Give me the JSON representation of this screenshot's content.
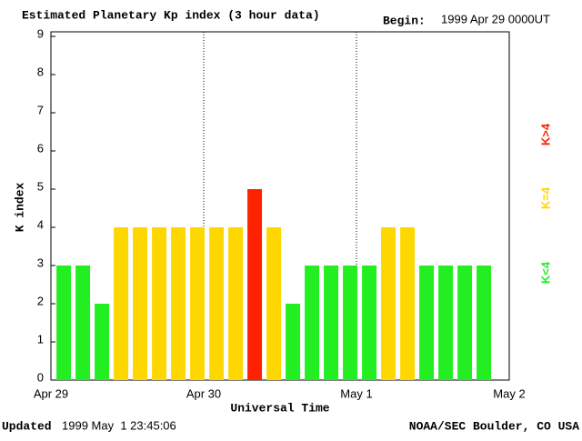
{
  "chart_data": {
    "type": "bar",
    "title": "Estimated Planetary Kp index (3 hour data)",
    "begin_label": "Begin:",
    "begin": "1999 Apr 29 0000UT",
    "updated_label": "Updated",
    "updated": "1999 May  1 23:45:06",
    "credit": "NOAA/SEC Boulder, CO USA",
    "x_label": "Universal Time",
    "y_label": "K index",
    "x": [
      0,
      3,
      6,
      9,
      12,
      15,
      18,
      21,
      24,
      27,
      30,
      33,
      36,
      39,
      42,
      45,
      48,
      51,
      54,
      57,
      60,
      63,
      66
    ],
    "values": [
      3,
      3,
      2,
      4,
      4,
      4,
      4,
      4,
      4,
      4,
      5,
      4,
      2,
      3,
      3,
      3,
      3,
      4,
      4,
      3,
      3,
      3,
      3
    ],
    "colors": [
      "#22ee22",
      "#22ee22",
      "#22ee22",
      "#ffd700",
      "#ffd700",
      "#ffd700",
      "#ffd700",
      "#ffd700",
      "#ffd700",
      "#ffd700",
      "#ff2200",
      "#ffd700",
      "#22ee22",
      "#22ee22",
      "#22ee22",
      "#22ee22",
      "#22ee22",
      "#ffd700",
      "#ffd700",
      "#22ee22",
      "#22ee22",
      "#22ee22",
      "#22ee22"
    ],
    "legend": [
      {
        "name": "K<4",
        "color": "#22ee22"
      },
      {
        "name": "K=4",
        "color": "#ffd700"
      },
      {
        "name": "K>4",
        "color": "#ff2200"
      }
    ],
    "xlim": [
      0,
      72
    ],
    "xticks": [
      {
        "value": 0,
        "label": "Apr 29"
      },
      {
        "value": 24,
        "label": "Apr 30"
      },
      {
        "value": 48,
        "label": "May 1"
      },
      {
        "value": 72,
        "label": "May 2"
      }
    ],
    "ylim": [
      0,
      9
    ],
    "yticks": [
      0,
      1,
      2,
      3,
      4,
      5,
      6,
      7,
      8,
      9
    ]
  }
}
